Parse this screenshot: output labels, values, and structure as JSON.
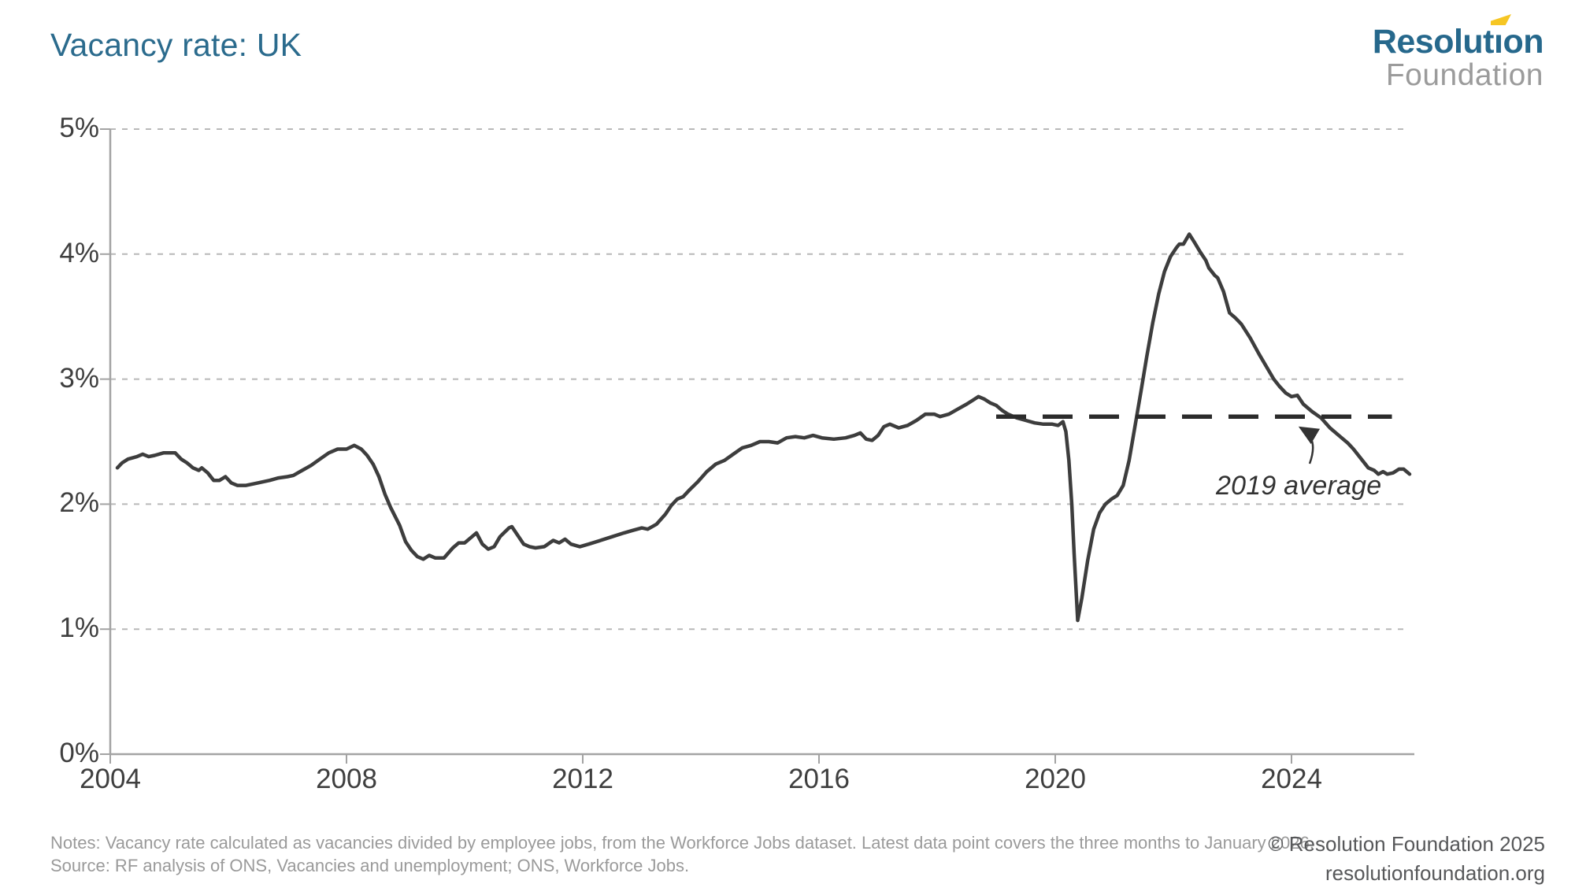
{
  "title": "Vacancy rate: UK",
  "logo": {
    "line1_a": "Resolut",
    "line1_i": "ı",
    "line1_b": "on",
    "line2": "Foundation",
    "flag_color": "#f6c623",
    "brand_color": "#26688c"
  },
  "annotation": {
    "label": "2019 average"
  },
  "footer": {
    "notes": "Notes: Vacancy rate calculated as vacancies divided by employee jobs, from the Workforce Jobs dataset. Latest data point covers the three months to January 2026.",
    "source": "Source: RF analysis of ONS, Vacancies and unemployment; ONS, Workforce Jobs.",
    "copyright": "© Resolution Foundation 2025",
    "website": "resolutionfoundation.org"
  },
  "colors": {
    "title": "#2b6b8d",
    "series_line": "#3d3d3d",
    "reference_line": "#2b2b2b",
    "gridline": "#b8b8b8",
    "axis": "#a3a3a3",
    "tick_label": "#3f3f3f",
    "notes_text": "#9a9a9a",
    "copyright_text": "#57585a"
  },
  "chart_data": {
    "type": "line",
    "title": "Vacancy rate: UK",
    "xlabel": "",
    "ylabel": "",
    "xlim": [
      2004,
      2026.2
    ],
    "ylim": [
      0,
      5
    ],
    "grid": "horizontal dashed",
    "legend": "none",
    "y_ticks": [
      {
        "value": 0,
        "label": "0%"
      },
      {
        "value": 1,
        "label": "1%"
      },
      {
        "value": 2,
        "label": "2%"
      },
      {
        "value": 3,
        "label": "3%"
      },
      {
        "value": 4,
        "label": "4%"
      },
      {
        "value": 5,
        "label": "5%"
      }
    ],
    "x_ticks": [
      {
        "value": 2004,
        "label": "2004"
      },
      {
        "value": 2008,
        "label": "2008"
      },
      {
        "value": 2012,
        "label": "2012"
      },
      {
        "value": 2016,
        "label": "2016"
      },
      {
        "value": 2020,
        "label": "2020"
      },
      {
        "value": 2024,
        "label": "2024"
      }
    ],
    "reference_line": {
      "label": "2019 average",
      "value": 2.7,
      "x_start": 2019.0,
      "x_end": 2025.7
    },
    "series": [
      {
        "name": "Vacancy rate",
        "points": [
          [
            2004.12,
            2.29
          ],
          [
            2004.2,
            2.33
          ],
          [
            2004.3,
            2.36
          ],
          [
            2004.45,
            2.38
          ],
          [
            2004.55,
            2.4
          ],
          [
            2004.65,
            2.38
          ],
          [
            2004.75,
            2.39
          ],
          [
            2004.9,
            2.41
          ],
          [
            2005.0,
            2.41
          ],
          [
            2005.1,
            2.41
          ],
          [
            2005.2,
            2.36
          ],
          [
            2005.3,
            2.33
          ],
          [
            2005.4,
            2.29
          ],
          [
            2005.5,
            2.27
          ],
          [
            2005.55,
            2.29
          ],
          [
            2005.65,
            2.25
          ],
          [
            2005.75,
            2.19
          ],
          [
            2005.85,
            2.19
          ],
          [
            2005.95,
            2.22
          ],
          [
            2006.05,
            2.17
          ],
          [
            2006.15,
            2.15
          ],
          [
            2006.3,
            2.15
          ],
          [
            2006.5,
            2.17
          ],
          [
            2006.7,
            2.19
          ],
          [
            2006.85,
            2.21
          ],
          [
            2007.0,
            2.22
          ],
          [
            2007.1,
            2.23
          ],
          [
            2007.25,
            2.27
          ],
          [
            2007.4,
            2.31
          ],
          [
            2007.55,
            2.36
          ],
          [
            2007.7,
            2.41
          ],
          [
            2007.85,
            2.44
          ],
          [
            2008.0,
            2.44
          ],
          [
            2008.13,
            2.47
          ],
          [
            2008.25,
            2.44
          ],
          [
            2008.35,
            2.39
          ],
          [
            2008.45,
            2.32
          ],
          [
            2008.55,
            2.22
          ],
          [
            2008.65,
            2.08
          ],
          [
            2008.75,
            1.97
          ],
          [
            2008.9,
            1.83
          ],
          [
            2009.0,
            1.7
          ],
          [
            2009.1,
            1.63
          ],
          [
            2009.2,
            1.58
          ],
          [
            2009.3,
            1.56
          ],
          [
            2009.4,
            1.59
          ],
          [
            2009.5,
            1.57
          ],
          [
            2009.65,
            1.57
          ],
          [
            2009.8,
            1.65
          ],
          [
            2009.9,
            1.69
          ],
          [
            2010.0,
            1.69
          ],
          [
            2010.1,
            1.73
          ],
          [
            2010.2,
            1.77
          ],
          [
            2010.3,
            1.68
          ],
          [
            2010.4,
            1.64
          ],
          [
            2010.5,
            1.66
          ],
          [
            2010.6,
            1.74
          ],
          [
            2010.75,
            1.81
          ],
          [
            2010.8,
            1.82
          ],
          [
            2010.9,
            1.75
          ],
          [
            2011.0,
            1.68
          ],
          [
            2011.1,
            1.66
          ],
          [
            2011.2,
            1.65
          ],
          [
            2011.35,
            1.66
          ],
          [
            2011.5,
            1.71
          ],
          [
            2011.6,
            1.69
          ],
          [
            2011.7,
            1.72
          ],
          [
            2011.8,
            1.68
          ],
          [
            2011.95,
            1.66
          ],
          [
            2012.1,
            1.68
          ],
          [
            2012.3,
            1.71
          ],
          [
            2012.5,
            1.74
          ],
          [
            2012.7,
            1.77
          ],
          [
            2012.85,
            1.79
          ],
          [
            2013.0,
            1.81
          ],
          [
            2013.1,
            1.8
          ],
          [
            2013.25,
            1.84
          ],
          [
            2013.4,
            1.92
          ],
          [
            2013.5,
            1.99
          ],
          [
            2013.6,
            2.04
          ],
          [
            2013.7,
            2.06
          ],
          [
            2013.8,
            2.11
          ],
          [
            2013.95,
            2.18
          ],
          [
            2014.1,
            2.26
          ],
          [
            2014.25,
            2.32
          ],
          [
            2014.4,
            2.35
          ],
          [
            2014.55,
            2.4
          ],
          [
            2014.7,
            2.45
          ],
          [
            2014.85,
            2.47
          ],
          [
            2015.0,
            2.5
          ],
          [
            2015.15,
            2.5
          ],
          [
            2015.3,
            2.49
          ],
          [
            2015.45,
            2.53
          ],
          [
            2015.6,
            2.54
          ],
          [
            2015.75,
            2.53
          ],
          [
            2015.9,
            2.55
          ],
          [
            2016.05,
            2.53
          ],
          [
            2016.25,
            2.52
          ],
          [
            2016.45,
            2.53
          ],
          [
            2016.6,
            2.55
          ],
          [
            2016.7,
            2.57
          ],
          [
            2016.8,
            2.52
          ],
          [
            2016.9,
            2.51
          ],
          [
            2017.0,
            2.55
          ],
          [
            2017.1,
            2.62
          ],
          [
            2017.2,
            2.64
          ],
          [
            2017.35,
            2.61
          ],
          [
            2017.5,
            2.63
          ],
          [
            2017.65,
            2.67
          ],
          [
            2017.8,
            2.72
          ],
          [
            2017.95,
            2.72
          ],
          [
            2018.05,
            2.7
          ],
          [
            2018.2,
            2.72
          ],
          [
            2018.35,
            2.76
          ],
          [
            2018.5,
            2.8
          ],
          [
            2018.6,
            2.83
          ],
          [
            2018.7,
            2.86
          ],
          [
            2018.8,
            2.84
          ],
          [
            2018.9,
            2.81
          ],
          [
            2019.0,
            2.79
          ],
          [
            2019.1,
            2.75
          ],
          [
            2019.2,
            2.72
          ],
          [
            2019.35,
            2.69
          ],
          [
            2019.5,
            2.67
          ],
          [
            2019.65,
            2.65
          ],
          [
            2019.8,
            2.64
          ],
          [
            2019.95,
            2.64
          ],
          [
            2020.05,
            2.63
          ],
          [
            2020.13,
            2.66
          ],
          [
            2020.18,
            2.58
          ],
          [
            2020.23,
            2.35
          ],
          [
            2020.28,
            2.0
          ],
          [
            2020.32,
            1.6
          ],
          [
            2020.38,
            1.07
          ],
          [
            2020.45,
            1.25
          ],
          [
            2020.55,
            1.55
          ],
          [
            2020.65,
            1.8
          ],
          [
            2020.75,
            1.93
          ],
          [
            2020.85,
            2.0
          ],
          [
            2020.95,
            2.04
          ],
          [
            2021.05,
            2.07
          ],
          [
            2021.15,
            2.15
          ],
          [
            2021.25,
            2.35
          ],
          [
            2021.35,
            2.62
          ],
          [
            2021.45,
            2.9
          ],
          [
            2021.55,
            3.18
          ],
          [
            2021.65,
            3.45
          ],
          [
            2021.75,
            3.68
          ],
          [
            2021.85,
            3.86
          ],
          [
            2021.95,
            3.98
          ],
          [
            2022.05,
            4.05
          ],
          [
            2022.1,
            4.08
          ],
          [
            2022.17,
            4.08
          ],
          [
            2022.27,
            4.16
          ],
          [
            2022.35,
            4.1
          ],
          [
            2022.45,
            4.02
          ],
          [
            2022.55,
            3.95
          ],
          [
            2022.6,
            3.89
          ],
          [
            2022.7,
            3.83
          ],
          [
            2022.75,
            3.81
          ],
          [
            2022.85,
            3.7
          ],
          [
            2022.95,
            3.53
          ],
          [
            2023.05,
            3.49
          ],
          [
            2023.15,
            3.44
          ],
          [
            2023.3,
            3.33
          ],
          [
            2023.45,
            3.2
          ],
          [
            2023.6,
            3.08
          ],
          [
            2023.7,
            3.0
          ],
          [
            2023.8,
            2.94
          ],
          [
            2023.9,
            2.89
          ],
          [
            2024.0,
            2.86
          ],
          [
            2024.1,
            2.87
          ],
          [
            2024.2,
            2.8
          ],
          [
            2024.35,
            2.74
          ],
          [
            2024.5,
            2.69
          ],
          [
            2024.65,
            2.61
          ],
          [
            2024.8,
            2.55
          ],
          [
            2024.95,
            2.49
          ],
          [
            2025.05,
            2.44
          ],
          [
            2025.2,
            2.35
          ],
          [
            2025.3,
            2.29
          ],
          [
            2025.4,
            2.27
          ],
          [
            2025.47,
            2.24
          ],
          [
            2025.55,
            2.26
          ],
          [
            2025.62,
            2.24
          ],
          [
            2025.72,
            2.25
          ],
          [
            2025.82,
            2.28
          ],
          [
            2025.9,
            2.28
          ],
          [
            2026.0,
            2.24
          ]
        ]
      }
    ]
  }
}
